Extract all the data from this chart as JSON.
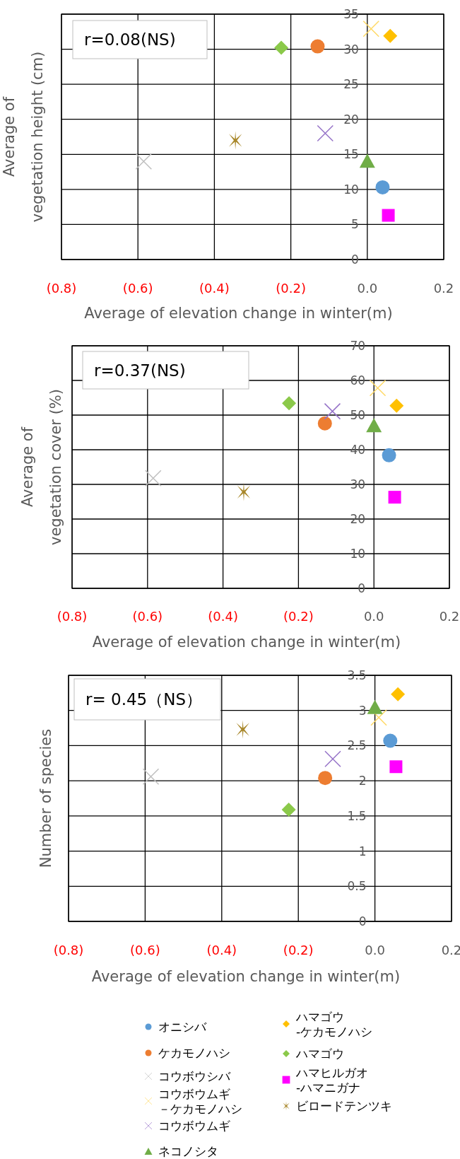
{
  "chart_data": [
    {
      "type": "scatter",
      "ylabel": "Average of\nvegetation height (cm)",
      "xlabel": "Average of elevation change in winter(m)",
      "annotations": [
        "r=0.08(NS)"
      ],
      "xlim": [
        -0.8,
        0.2
      ],
      "xticks": [
        {
          "value": -0.8,
          "label": "(0.8)"
        },
        {
          "value": -0.6,
          "label": "(0.6)"
        },
        {
          "value": -0.4,
          "label": "(0.4)"
        },
        {
          "value": -0.2,
          "label": "(0.2)"
        },
        {
          "value": 0,
          "label": "0.0"
        },
        {
          "value": 0.2,
          "label": "0.2"
        }
      ],
      "ylim": [
        0,
        35
      ],
      "yticks": [
        0,
        5,
        10,
        15,
        20,
        25,
        30,
        35
      ],
      "grid": true,
      "series": [
        {
          "color": "#5b9bd5",
          "marker": "circle",
          "x": [
            0.04
          ],
          "values": [
            10.3
          ]
        },
        {
          "color": "#ed7d31",
          "marker": "circle",
          "x": [
            -0.13
          ],
          "values": [
            30.4
          ]
        },
        {
          "color": "#bfbfbf",
          "marker": "cross",
          "x": [
            -0.585
          ],
          "values": [
            14.0
          ]
        },
        {
          "color": "#ffd966",
          "marker": "cross",
          "x": [
            0.01
          ],
          "values": [
            32.9
          ]
        },
        {
          "color": "#9673c8",
          "marker": "cross",
          "x": [
            -0.11
          ],
          "values": [
            18.0
          ]
        },
        {
          "color": "#70ad47",
          "marker": "triangle",
          "x": [
            0.0
          ],
          "values": [
            14.1
          ]
        },
        {
          "color": "#ffc000",
          "marker": "diamond",
          "x": [
            0.06
          ],
          "values": [
            31.9
          ]
        },
        {
          "color": "#8bc94a",
          "marker": "diamond",
          "x": [
            -0.225
          ],
          "values": [
            30.2
          ]
        },
        {
          "color": "#ff00ff",
          "marker": "square",
          "x": [
            0.055
          ],
          "values": [
            6.3
          ]
        },
        {
          "color": "#a8872a",
          "x": [
            -0.345
          ],
          "values": [
            17.0
          ]
        }
      ]
    },
    {
      "type": "scatter",
      "ylabel": "Average of\nvegetation cover (%)",
      "xlabel": "Average of elevation change in winter(m)",
      "annotations": [
        "r=0.37(NS)"
      ],
      "xlim": [
        -0.8,
        0.2
      ],
      "xticks": [
        {
          "value": -0.8,
          "label": "(0.8)"
        },
        {
          "value": -0.6,
          "label": "(0.6)"
        },
        {
          "value": -0.4,
          "label": "(0.4)"
        },
        {
          "value": -0.2,
          "label": "(0.2)"
        },
        {
          "value": 0,
          "label": "0.0"
        },
        {
          "value": 0.2,
          "label": "0.2"
        }
      ],
      "ylim": [
        0,
        70
      ],
      "yticks": [
        0,
        10,
        20,
        30,
        40,
        50,
        60,
        70
      ],
      "grid": true,
      "series": [
        {
          "color": "#5b9bd5",
          "marker": "circle",
          "x": [
            0.04
          ],
          "values": [
            38.4
          ]
        },
        {
          "color": "#ed7d31",
          "marker": "circle",
          "x": [
            -0.13
          ],
          "values": [
            47.6
          ]
        },
        {
          "color": "#bfbfbf",
          "marker": "cross",
          "x": [
            -0.585
          ],
          "values": [
            31.8
          ]
        },
        {
          "color": "#ffd966",
          "marker": "cross",
          "x": [
            0.01
          ],
          "values": [
            57.8
          ]
        },
        {
          "color": "#9673c8",
          "marker": "cross",
          "x": [
            -0.11
          ],
          "values": [
            51.1
          ]
        },
        {
          "color": "#70ad47",
          "marker": "triangle",
          "x": [
            0.0
          ],
          "values": [
            47.1
          ]
        },
        {
          "color": "#ffc000",
          "marker": "diamond",
          "x": [
            0.06
          ],
          "values": [
            52.7
          ]
        },
        {
          "color": "#8bc94a",
          "marker": "diamond",
          "x": [
            -0.225
          ],
          "values": [
            53.4
          ]
        },
        {
          "color": "#ff00ff",
          "marker": "square",
          "x": [
            0.055
          ],
          "values": [
            26.3
          ]
        },
        {
          "color": "#a8872a",
          "x": [
            -0.345
          ],
          "values": [
            27.8
          ]
        }
      ]
    },
    {
      "type": "scatter",
      "ylabel": "Number of species",
      "xlabel": "Average of elevation change in winter(m)",
      "annotations": [
        "r= 0.45（NS）"
      ],
      "xlim": [
        -0.8,
        0.2
      ],
      "xticks": [
        {
          "value": -0.8,
          "label": "(0.8)"
        },
        {
          "value": -0.6,
          "label": "(0.6)"
        },
        {
          "value": -0.4,
          "label": "(0.4)"
        },
        {
          "value": -0.2,
          "label": "(0.2)"
        },
        {
          "value": 0,
          "label": "0.0"
        },
        {
          "value": 0.2,
          "label": "0.2"
        }
      ],
      "ylim": [
        0,
        3.5
      ],
      "yticks": [
        0,
        0.5,
        1,
        1.5,
        2,
        2.5,
        3,
        3.5
      ],
      "grid": true,
      "legend": "bottom",
      "series": [
        {
          "name": "オニシバ",
          "color": "#5b9bd5",
          "marker": "circle",
          "x": [
            0.04
          ],
          "values": [
            2.57
          ]
        },
        {
          "name": "ケカモノハシ",
          "color": "#ed7d31",
          "marker": "circle",
          "x": [
            -0.13
          ],
          "values": [
            2.04
          ]
        },
        {
          "name": "コウボウシバ",
          "color": "#bfbfbf",
          "marker": "cross",
          "x": [
            -0.585
          ],
          "values": [
            2.06
          ]
        },
        {
          "name": "コウボウムギ－ケカモノハシ",
          "color": "#ffd966",
          "marker": "cross",
          "x": [
            0.01
          ],
          "values": [
            2.9
          ]
        },
        {
          "name": "コウボウムギ",
          "color": "#9673c8",
          "marker": "cross",
          "x": [
            -0.11
          ],
          "values": [
            2.31
          ]
        },
        {
          "name": "ネコノシタ",
          "color": "#70ad47",
          "marker": "triangle",
          "x": [
            0.0
          ],
          "values": [
            3.05
          ]
        },
        {
          "name": "ハマゴウ-ケカモノハシ",
          "color": "#ffc000",
          "marker": "diamond",
          "x": [
            0.06
          ],
          "values": [
            3.23
          ]
        },
        {
          "name": "ハマゴウ",
          "color": "#8bc94a",
          "marker": "diamond",
          "x": [
            -0.225
          ],
          "values": [
            1.59
          ]
        },
        {
          "name": "ハマヒルガオ-ハマニガナ",
          "color": "#ff00ff",
          "marker": "square",
          "x": [
            0.055
          ],
          "values": [
            2.2
          ]
        },
        {
          "name": "ビロードテンツキ",
          "color": "#a8872a",
          "x": [
            -0.345
          ],
          "values": [
            2.73
          ]
        }
      ]
    }
  ]
}
